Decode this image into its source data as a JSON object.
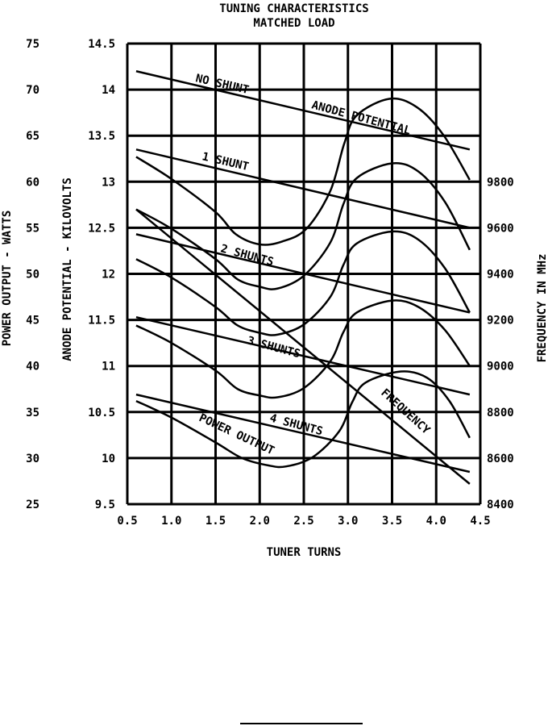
{
  "chart_data": {
    "type": "line",
    "title": [
      "TUNING CHARACTERISTICS",
      "MATCHED LOAD"
    ],
    "xlabel": "TUNER TURNS",
    "ylabel_power": "POWER OUTPUT - WATTS",
    "ylabel_anode": "ANODE POTENTIAL - KILOVOLTS",
    "ylabel_freq": "FREQUENCY IN MHz",
    "xlim": [
      0.5,
      4.5
    ],
    "anode_lim": [
      9.5,
      14.5
    ],
    "power_lim": [
      25,
      75
    ],
    "freq_lim": [
      8400,
      9800
    ],
    "grid": true,
    "x_ticks": [
      "0.5",
      "1.0",
      "1.5",
      "2.0",
      "2.5",
      "3.0",
      "3.5",
      "4.0",
      "4.5"
    ],
    "anode_ticks": [
      "14.5",
      "14",
      "13.5",
      "13",
      "12.5",
      "12",
      "11.5",
      "11",
      "10.5",
      "10",
      "9.5"
    ],
    "power_ticks": [
      "75",
      "70",
      "65",
      "60",
      "55",
      "50",
      "45",
      "40",
      "35",
      "30",
      "25"
    ],
    "freq_ticks": [
      "9800",
      "9600",
      "9400",
      "9200",
      "9000",
      "8800",
      "8600",
      "8400"
    ],
    "anode_potential_series": [
      {
        "name": "NO SHUNT",
        "x": [
          0.6,
          4.38
        ],
        "kv": [
          14.2,
          13.35
        ]
      },
      {
        "name": "1 SHUNT",
        "x": [
          0.6,
          4.38
        ],
        "kv": [
          13.35,
          12.5
        ]
      },
      {
        "name": "2 SHUNTS",
        "x": [
          0.6,
          4.38
        ],
        "kv": [
          12.43,
          11.58
        ]
      },
      {
        "name": "3 SHUNTS",
        "x": [
          0.6,
          4.38
        ],
        "kv": [
          11.53,
          10.69
        ]
      },
      {
        "name": "4 SHUNTS",
        "x": [
          0.6,
          4.38
        ],
        "kv": [
          10.69,
          9.85
        ]
      }
    ],
    "power_output_series": [
      {
        "name": "no shunt",
        "x": [
          0.6,
          1.0,
          1.5,
          1.73,
          2.0,
          2.25,
          2.53,
          2.8,
          2.96,
          3.1,
          3.47,
          3.78,
          4.08,
          4.38
        ],
        "watts": [
          62.7,
          60.3,
          56.7,
          54.3,
          53.2,
          53.5,
          54.9,
          59.0,
          64.2,
          67.2,
          69.0,
          68.1,
          65.1,
          60.2
        ]
      },
      {
        "name": "1 shunt",
        "x": [
          0.6,
          1.0,
          1.5,
          1.75,
          2.0,
          2.2,
          2.5,
          2.8,
          2.95,
          3.1,
          3.5,
          3.8,
          4.1,
          4.38
        ],
        "watts": [
          57.0,
          54.9,
          51.6,
          49.4,
          48.6,
          48.4,
          49.8,
          53.4,
          57.6,
          60.4,
          62.0,
          61.1,
          57.8,
          52.6
        ]
      },
      {
        "name": "2 shunts",
        "x": [
          0.6,
          1.0,
          1.5,
          1.75,
          2.0,
          2.2,
          2.5,
          2.8,
          2.95,
          3.1,
          3.5,
          3.8,
          4.1,
          4.38
        ],
        "watts": [
          51.6,
          49.6,
          46.4,
          44.4,
          43.6,
          43.4,
          44.5,
          47.5,
          51.0,
          53.3,
          54.6,
          53.7,
          50.6,
          45.8
        ]
      },
      {
        "name": "3 shunts",
        "x": [
          0.6,
          1.0,
          1.5,
          1.75,
          2.0,
          2.2,
          2.5,
          2.8,
          2.95,
          3.1,
          3.5,
          3.8,
          4.1,
          4.38
        ],
        "watts": [
          44.4,
          42.5,
          39.5,
          37.5,
          36.8,
          36.6,
          37.6,
          40.5,
          43.7,
          45.8,
          47.1,
          46.4,
          43.9,
          40.0
        ]
      },
      {
        "name": "4 shunts",
        "x": [
          0.6,
          1.0,
          1.5,
          1.8,
          2.1,
          2.3,
          2.6,
          2.9,
          3.05,
          3.2,
          3.6,
          3.9,
          4.15,
          4.38
        ],
        "watts": [
          36.2,
          34.4,
          31.7,
          30.0,
          29.2,
          29.1,
          30.1,
          32.9,
          36.1,
          38.2,
          39.4,
          38.7,
          36.2,
          32.2
        ]
      }
    ],
    "frequency_series": {
      "name": "FREQUENCY",
      "x": [
        0.6,
        4.38
      ],
      "mhz": [
        9680,
        8488
      ]
    },
    "annotations": {
      "no_shunt": "NO SHUNT",
      "anode_potential": "ANODE POTENTIAL",
      "one_shunt": "1 SHUNT",
      "two_shunts": "2 SHUNTS",
      "three_shunts": "3 SHUNTS",
      "four_shunts": "4 SHUNTS",
      "frequency": "FREQUENCY",
      "power_output": "POWER OUTPUT"
    }
  }
}
